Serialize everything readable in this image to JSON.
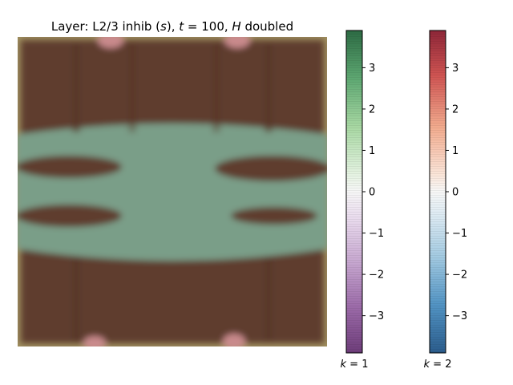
{
  "chart_data": {
    "type": "heatmap",
    "title": "Layer: L2/3 inhib (s), t = 100, H doubled",
    "title_parts": {
      "prefix": "Layer: L2/3 inhib (",
      "s": "s",
      "mid1": "), ",
      "t": "t",
      "eq": " = 100, ",
      "H": "H",
      "suffix": " doubled"
    },
    "description": "Overlay of two fields k=1 (green/purple diverging colormap) and k=2 (red/blue diverging colormap) on a square grid",
    "grid_size": [
      24,
      24
    ],
    "value_range": [
      -3.9,
      3.9
    ],
    "colorbars": [
      {
        "name": "k = 1",
        "label_k": "k",
        "label_val": " = 1",
        "colormap": "PRGn",
        "range": [
          -3.9,
          3.9
        ],
        "ticks": [
          3,
          2,
          1,
          0,
          -1,
          -2,
          -3
        ],
        "tick_labels": [
          "3",
          "2",
          "1",
          "0",
          "−1",
          "−2",
          "−3"
        ],
        "top_color": "#00441b",
        "bottom_color": "#40004b"
      },
      {
        "name": "k = 2",
        "label_k": "k",
        "label_val": " = 2",
        "colormap": "RdBu",
        "range": [
          -3.9,
          3.9
        ],
        "ticks": [
          3,
          2,
          1,
          0,
          -1,
          -2,
          -3
        ],
        "tick_labels": [
          "3",
          "2",
          "1",
          "0",
          "−1",
          "−2",
          "−3"
        ],
        "top_color": "#67001f",
        "bottom_color": "#053061"
      }
    ],
    "regions": [
      {
        "name": "upper-brown-region",
        "color": "#5e3c2e"
      },
      {
        "name": "middle-green-band",
        "color": "#7a9e88"
      },
      {
        "name": "lower-brown-region",
        "color": "#5e3c2e"
      },
      {
        "name": "left-upper-blob",
        "color": "#5e3c2e"
      },
      {
        "name": "left-lower-blob",
        "color": "#5e3c2e"
      },
      {
        "name": "right-upper-blob",
        "color": "#5e3c2e"
      },
      {
        "name": "right-lower-blob",
        "color": "#5e3c2e"
      },
      {
        "name": "pink-corner-spots",
        "color": "#c98a8c"
      }
    ]
  }
}
